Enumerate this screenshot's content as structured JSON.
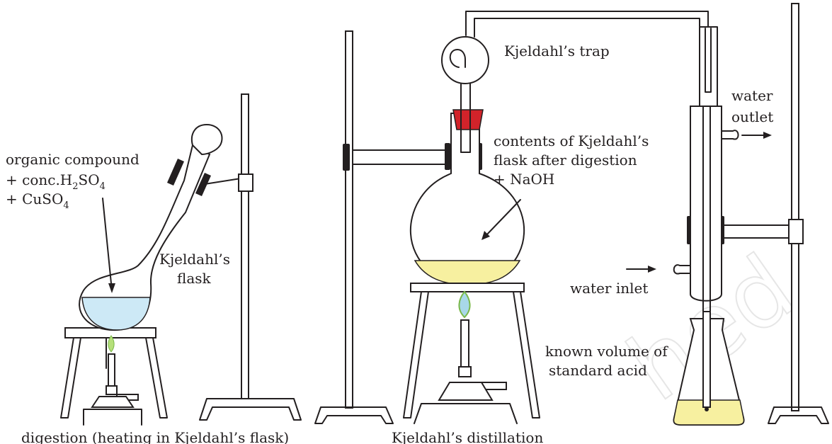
{
  "labels": {
    "reagents_line1": "organic compound",
    "reagents_line2_prefix": "+ conc.H",
    "reagents_line2_sub": "2",
    "reagents_line2_mid": "SO",
    "reagents_line2_sub2": "4",
    "reagents_line3_prefix": "+ CuSO",
    "reagents_line3_sub": "4",
    "flask_line1": "Kjeldahl’s",
    "flask_line2": "flask",
    "trap": "Kjeldahl’s trap",
    "contents_line1": "contents of Kjeldahl’s",
    "contents_line2": "flask after digestion",
    "contents_line3": "+ NaOH",
    "water_outlet_line1": "water",
    "water_outlet_line2": "outlet",
    "water_inlet": "water inlet",
    "acid_line1": "known volume of",
    "acid_line2": "standard acid"
  },
  "captions": {
    "digestion": "digestion (heating in Kjeldahl’s flask)",
    "distillation": "Kjeldahl’s distillation"
  },
  "watermark": "hed",
  "colors": {
    "line": "#231f20",
    "blue_liquid": "#cde9f6",
    "yellow_liquid": "#f7f0a0",
    "stopper_red": "#d2232a",
    "flame_blue": "#a8d8e8",
    "flame_green": "#b6e07a"
  }
}
